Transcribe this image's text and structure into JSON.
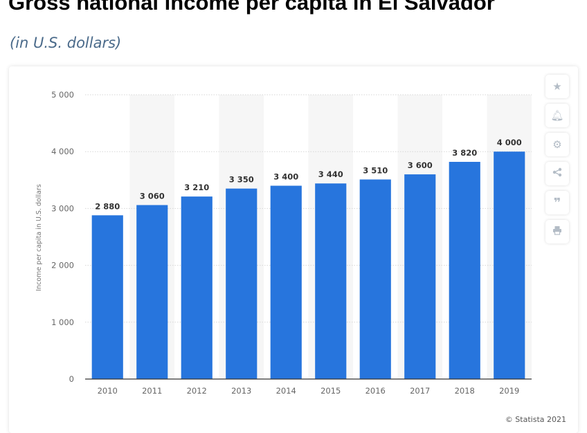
{
  "header": {
    "title": "Gross national income per capita in El Salvador",
    "subtitle": "(in U.S. dollars)"
  },
  "chart_data": {
    "type": "bar",
    "categories": [
      "2010",
      "2011",
      "2012",
      "2013",
      "2014",
      "2015",
      "2016",
      "2017",
      "2018",
      "2019"
    ],
    "values": [
      2880,
      3060,
      3210,
      3350,
      3400,
      3440,
      3510,
      3600,
      3820,
      4000
    ],
    "value_labels": [
      "2 880",
      "3 060",
      "3 210",
      "3 350",
      "3 400",
      "3 440",
      "3 510",
      "3 600",
      "3 820",
      "4 000"
    ],
    "ylabel": "Income per capita in U.S. dollars",
    "xlabel": "",
    "ylim": [
      0,
      5000
    ],
    "yticks": [
      0,
      1000,
      2000,
      3000,
      4000,
      5000
    ],
    "ytick_labels": [
      "0",
      "1 000",
      "2 000",
      "3 000",
      "4 000",
      "5 000"
    ],
    "bar_color": "#2775dd",
    "grid": true,
    "alternating_column_shading": true,
    "legend": "none"
  },
  "toolbar": {
    "icons": [
      "star-icon",
      "bell-icon",
      "gear-icon",
      "share-icon",
      "quote-icon",
      "print-icon"
    ]
  },
  "footer": {
    "credit": "© Statista 2021"
  }
}
